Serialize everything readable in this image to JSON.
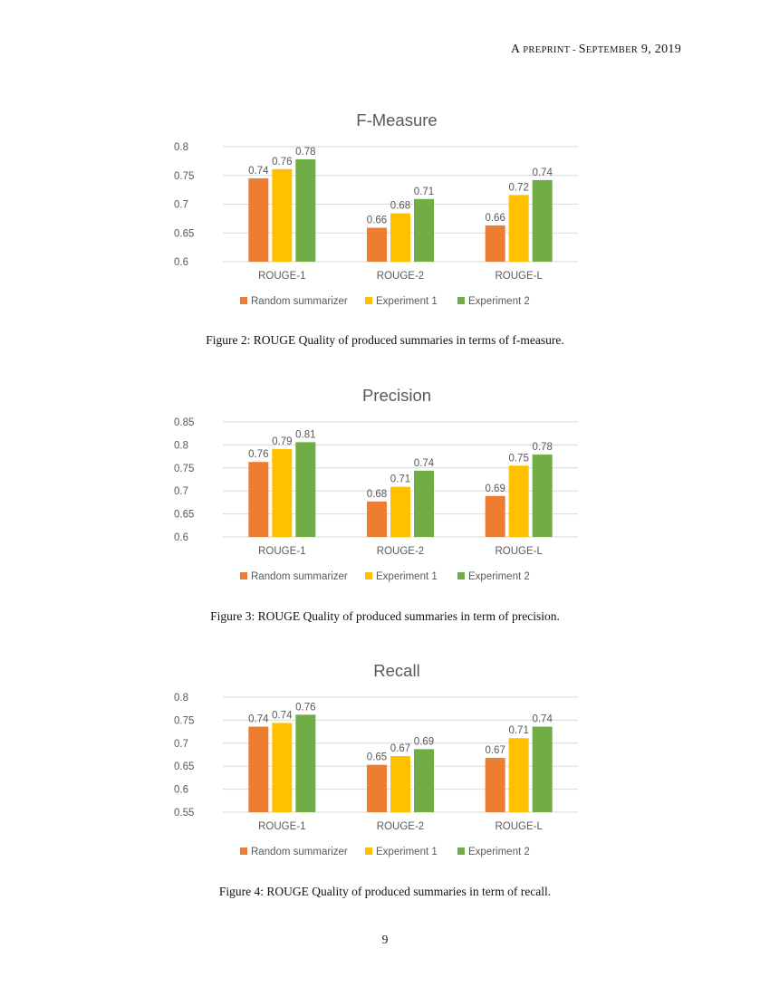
{
  "header": {
    "prefix_big": "A ",
    "prefix_small": "PREPRINT - ",
    "month_big": "S",
    "month_small": "EPTEMBER",
    "date_rest": " 9, 2019"
  },
  "colors": {
    "random": "#ED7D31",
    "exp1": "#FFC000",
    "exp2": "#70AD47",
    "grid": "#D9D9D9",
    "axis_text": "#595959"
  },
  "figures": [
    {
      "caption": "Figure 2: ROUGE Quality of produced summaries in terms of f-measure."
    },
    {
      "caption": "Figure 3: ROUGE Quality of produced summaries in term of precision."
    },
    {
      "caption": "Figure 4: ROUGE Quality of produced summaries in term of recall."
    }
  ],
  "chart_data": [
    {
      "type": "bar",
      "title": "F-Measure",
      "categories": [
        "ROUGE-1",
        "ROUGE-2",
        "ROUGE-L"
      ],
      "series": [
        {
          "name": "Random summarizer",
          "values": [
            0.745,
            0.659,
            0.663
          ],
          "labels": [
            "0.74",
            "0.66",
            "0.66"
          ]
        },
        {
          "name": "Experiment 1",
          "values": [
            0.761,
            0.684,
            0.716
          ],
          "labels": [
            "0.76",
            "0.68",
            "0.72"
          ]
        },
        {
          "name": "Experiment 2",
          "values": [
            0.778,
            0.709,
            0.742
          ],
          "labels": [
            "0.78",
            "0.71",
            "0.74"
          ]
        }
      ],
      "ylim": [
        0.6,
        0.8
      ],
      "yticks": [
        "0.6",
        "0.65",
        "0.7",
        "0.75",
        "0.8"
      ],
      "ytick_values": [
        0.6,
        0.65,
        0.7,
        0.75,
        0.8
      ],
      "legend": "bottom"
    },
    {
      "type": "bar",
      "title": "Precision",
      "categories": [
        "ROUGE-1",
        "ROUGE-2",
        "ROUGE-L"
      ],
      "series": [
        {
          "name": "Random summarizer",
          "values": [
            0.763,
            0.677,
            0.689
          ],
          "labels": [
            "0.76",
            "0.68",
            "0.69"
          ]
        },
        {
          "name": "Experiment 1",
          "values": [
            0.791,
            0.709,
            0.755
          ],
          "labels": [
            "0.79",
            "0.71",
            "0.75"
          ]
        },
        {
          "name": "Experiment 2",
          "values": [
            0.806,
            0.744,
            0.779
          ],
          "labels": [
            "0.81",
            "0.74",
            "0.78"
          ]
        }
      ],
      "ylim": [
        0.6,
        0.85
      ],
      "yticks": [
        "0.6",
        "0.65",
        "0.7",
        "0.75",
        "0.8",
        "0.85"
      ],
      "ytick_values": [
        0.6,
        0.65,
        0.7,
        0.75,
        0.8,
        0.85
      ],
      "legend": "bottom"
    },
    {
      "type": "bar",
      "title": "Recall",
      "categories": [
        "ROUGE-1",
        "ROUGE-2",
        "ROUGE-L"
      ],
      "series": [
        {
          "name": "Random summarizer",
          "values": [
            0.736,
            0.653,
            0.668
          ],
          "labels": [
            "0.74",
            "0.65",
            "0.67"
          ]
        },
        {
          "name": "Experiment 1",
          "values": [
            0.744,
            0.672,
            0.711
          ],
          "labels": [
            "0.74",
            "0.67",
            "0.71"
          ]
        },
        {
          "name": "Experiment 2",
          "values": [
            0.762,
            0.687,
            0.736
          ],
          "labels": [
            "0.76",
            "0.69",
            "0.74"
          ]
        }
      ],
      "ylim": [
        0.55,
        0.8
      ],
      "yticks": [
        "0.55",
        "0.6",
        "0.65",
        "0.7",
        "0.75",
        "0.8"
      ],
      "ytick_values": [
        0.55,
        0.6,
        0.65,
        0.7,
        0.75,
        0.8
      ],
      "legend": "bottom"
    }
  ],
  "page_number": "9"
}
